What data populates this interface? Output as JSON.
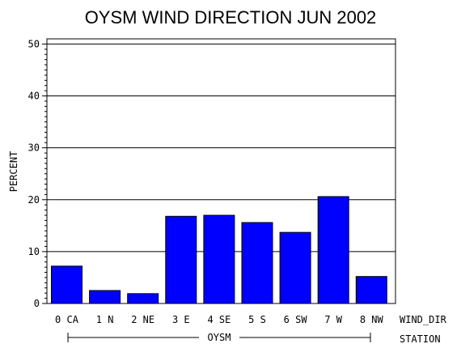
{
  "chart_data": {
    "type": "bar",
    "title": "OYSM WIND DIRECTION JUN 2002",
    "ylabel": "PERCENT",
    "xlabel": "WIND_DIR",
    "group_axis_label": "STATION",
    "group_label": "OYSM",
    "categories": [
      "0 CA",
      "1 N",
      "2 NE",
      "3 E",
      "4 SE",
      "5 S",
      "6 SW",
      "7 W",
      "8 NW"
    ],
    "values": [
      7.2,
      2.5,
      1.9,
      16.8,
      17.0,
      15.6,
      13.7,
      20.6,
      5.2
    ],
    "ylim": [
      0,
      51
    ],
    "yticks": [
      0,
      10,
      20,
      30,
      40,
      50
    ],
    "grid": true,
    "bar_color": "#0000ff"
  }
}
